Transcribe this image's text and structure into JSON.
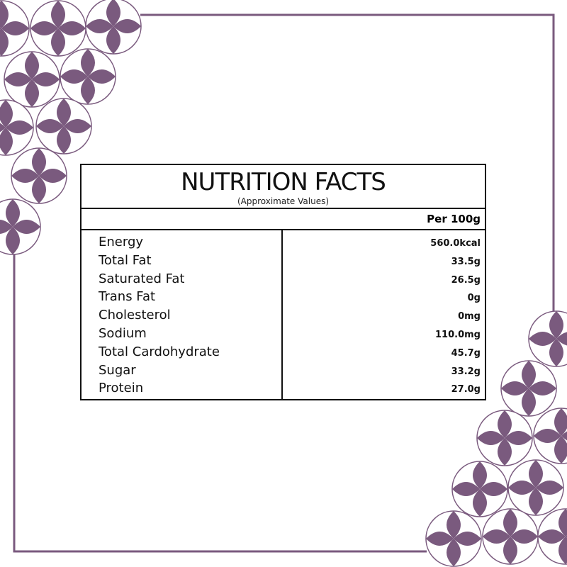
{
  "colors": {
    "accent": "#7a5a7e",
    "border": "#111111"
  },
  "label": {
    "title": "NUTRITION FACTS",
    "subtitle": "(Approximate Values)",
    "column_header": "Per 100g",
    "rows": [
      {
        "name": "Energy",
        "value": "560.0kcal"
      },
      {
        "name": "Total Fat",
        "value": "33.5g"
      },
      {
        "name": "Saturated Fat",
        "value": "26.5g"
      },
      {
        "name": "Trans Fat",
        "value": "0g"
      },
      {
        "name": "Cholesterol",
        "value": "0mg"
      },
      {
        "name": "Sodium",
        "value": "110.0mg"
      },
      {
        "name": "Total Cardohydrate",
        "value": "45.7g"
      },
      {
        "name": "Sugar",
        "value": "33.2g"
      },
      {
        "name": "Protein",
        "value": "27.0g"
      }
    ]
  }
}
